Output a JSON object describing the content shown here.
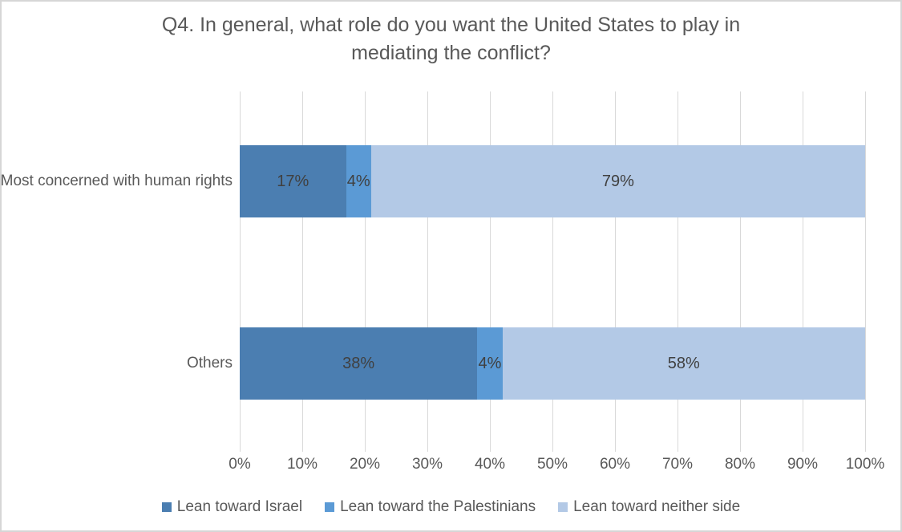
{
  "chart_data": {
    "type": "bar",
    "orientation": "horizontal",
    "stacked": true,
    "title": "Q4. In general, what role do you want the United States to play in mediating the conflict?",
    "title_lines": [
      "Q4. In general, what role do you want the United States to play in",
      "mediating the conflict?"
    ],
    "categories": [
      "Most concerned with human rights",
      "Others"
    ],
    "series": [
      {
        "name": "Lean toward Israel",
        "color": "#4B7EB1",
        "values": [
          17,
          38
        ]
      },
      {
        "name": "Lean toward the Palestinians",
        "color": "#5B9AD5",
        "values": [
          4,
          4
        ]
      },
      {
        "name": "Lean toward neither side",
        "color": "#B3C9E6",
        "values": [
          79,
          58
        ]
      }
    ],
    "data_labels": [
      [
        "17%",
        "4%",
        "79%"
      ],
      [
        "38%",
        "4%",
        "58%"
      ]
    ],
    "x_axis": {
      "min": 0,
      "max": 100,
      "tick_interval": 10,
      "tick_labels": [
        "0%",
        "10%",
        "20%",
        "30%",
        "40%",
        "50%",
        "60%",
        "70%",
        "80%",
        "90%",
        "100%"
      ]
    },
    "legend_position": "bottom",
    "grid": true,
    "colors": {
      "title_text": "#595959",
      "axis_text": "#595959",
      "data_label_text": "#404040",
      "gridline": "#D9D9D9",
      "border": "#D6D6D6",
      "background": "#FFFFFF"
    }
  }
}
